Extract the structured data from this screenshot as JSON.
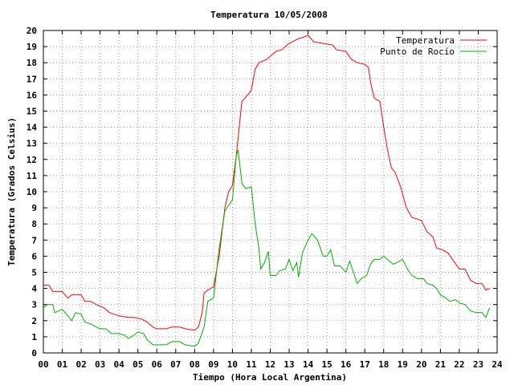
{
  "chart_data": {
    "type": "line",
    "title": "Temperatura 10/05/2008",
    "xlabel": "Tiempo (Hora Local Argentina)",
    "ylabel": "Temperatura (Grados Celsius)",
    "xlim": [
      0,
      24
    ],
    "ylim": [
      0,
      20
    ],
    "grid": true,
    "legend_position": "top-right",
    "x_ticks": [
      "00",
      "01",
      "02",
      "03",
      "04",
      "05",
      "06",
      "07",
      "08",
      "09",
      "10",
      "11",
      "12",
      "13",
      "14",
      "15",
      "16",
      "17",
      "18",
      "19",
      "20",
      "21",
      "22",
      "23",
      "24"
    ],
    "y_ticks": [
      "0",
      "1",
      "2",
      "3",
      "4",
      "5",
      "6",
      "7",
      "8",
      "9",
      "10",
      "11",
      "12",
      "13",
      "14",
      "15",
      "16",
      "17",
      "18",
      "19",
      "20"
    ],
    "series": [
      {
        "name": "Temperatura",
        "color": "#ff0000",
        "points": [
          [
            0.0,
            4.2
          ],
          [
            0.3,
            4.2
          ],
          [
            0.5,
            3.8
          ],
          [
            1.0,
            3.8
          ],
          [
            1.3,
            3.4
          ],
          [
            1.5,
            3.6
          ],
          [
            2.0,
            3.6
          ],
          [
            2.2,
            3.2
          ],
          [
            2.5,
            3.2
          ],
          [
            2.8,
            3.0
          ],
          [
            3.2,
            2.8
          ],
          [
            3.5,
            2.5
          ],
          [
            4.0,
            2.3
          ],
          [
            4.5,
            2.2
          ],
          [
            4.8,
            2.2
          ],
          [
            5.2,
            2.1
          ],
          [
            5.5,
            1.9
          ],
          [
            5.8,
            1.6
          ],
          [
            6.0,
            1.5
          ],
          [
            6.5,
            1.5
          ],
          [
            6.8,
            1.6
          ],
          [
            7.2,
            1.6
          ],
          [
            7.5,
            1.5
          ],
          [
            8.0,
            1.4
          ],
          [
            8.2,
            1.6
          ],
          [
            8.4,
            2.5
          ],
          [
            8.5,
            3.7
          ],
          [
            8.7,
            3.9
          ],
          [
            9.0,
            4.1
          ],
          [
            9.3,
            6.0
          ],
          [
            9.6,
            9.0
          ],
          [
            9.8,
            10.0
          ],
          [
            10.0,
            10.4
          ],
          [
            10.2,
            12.2
          ],
          [
            10.5,
            15.6
          ],
          [
            10.8,
            16.0
          ],
          [
            11.0,
            16.3
          ],
          [
            11.2,
            17.6
          ],
          [
            11.4,
            18.0
          ],
          [
            11.8,
            18.2
          ],
          [
            12.3,
            18.7
          ],
          [
            12.6,
            18.8
          ],
          [
            13.0,
            19.2
          ],
          [
            13.5,
            19.5
          ],
          [
            13.8,
            19.6
          ],
          [
            14.0,
            19.7
          ],
          [
            14.3,
            19.3
          ],
          [
            14.8,
            19.2
          ],
          [
            15.3,
            19.1
          ],
          [
            15.5,
            18.8
          ],
          [
            16.0,
            18.7
          ],
          [
            16.3,
            18.2
          ],
          [
            16.6,
            18.0
          ],
          [
            17.0,
            17.9
          ],
          [
            17.2,
            17.7
          ],
          [
            17.3,
            16.8
          ],
          [
            17.5,
            15.8
          ],
          [
            17.8,
            15.6
          ],
          [
            18.0,
            14.0
          ],
          [
            18.2,
            12.6
          ],
          [
            18.4,
            11.5
          ],
          [
            18.6,
            11.2
          ],
          [
            18.9,
            10.3
          ],
          [
            19.2,
            9.0
          ],
          [
            19.5,
            8.4
          ],
          [
            19.8,
            8.3
          ],
          [
            20.0,
            8.2
          ],
          [
            20.3,
            7.5
          ],
          [
            20.6,
            7.2
          ],
          [
            20.8,
            6.5
          ],
          [
            21.1,
            6.4
          ],
          [
            21.4,
            6.2
          ],
          [
            21.7,
            5.7
          ],
          [
            22.0,
            5.2
          ],
          [
            22.3,
            5.2
          ],
          [
            22.6,
            4.5
          ],
          [
            22.9,
            4.3
          ],
          [
            23.2,
            4.3
          ],
          [
            23.4,
            3.9
          ],
          [
            23.6,
            4.0
          ]
        ]
      },
      {
        "name": "Punto de Rocío",
        "color": "#00b000",
        "points": [
          [
            0.0,
            2.8
          ],
          [
            0.2,
            3.0
          ],
          [
            0.5,
            3.0
          ],
          [
            0.6,
            2.5
          ],
          [
            1.0,
            2.7
          ],
          [
            1.3,
            2.3
          ],
          [
            1.5,
            2.0
          ],
          [
            1.7,
            2.5
          ],
          [
            2.0,
            2.4
          ],
          [
            2.2,
            1.9
          ],
          [
            2.5,
            1.8
          ],
          [
            2.8,
            1.6
          ],
          [
            3.0,
            1.5
          ],
          [
            3.3,
            1.5
          ],
          [
            3.6,
            1.2
          ],
          [
            4.0,
            1.2
          ],
          [
            4.3,
            1.1
          ],
          [
            4.5,
            0.9
          ],
          [
            4.8,
            1.1
          ],
          [
            5.0,
            1.3
          ],
          [
            5.3,
            1.2
          ],
          [
            5.5,
            0.8
          ],
          [
            5.8,
            0.5
          ],
          [
            6.5,
            0.5
          ],
          [
            6.8,
            0.7
          ],
          [
            7.2,
            0.7
          ],
          [
            7.5,
            0.5
          ],
          [
            8.0,
            0.4
          ],
          [
            8.2,
            0.6
          ],
          [
            8.5,
            1.6
          ],
          [
            8.7,
            3.2
          ],
          [
            9.0,
            3.4
          ],
          [
            9.3,
            6.5
          ],
          [
            9.6,
            8.8
          ],
          [
            10.0,
            9.5
          ],
          [
            10.2,
            12.2
          ],
          [
            10.3,
            12.6
          ],
          [
            10.5,
            10.5
          ],
          [
            10.7,
            10.2
          ],
          [
            11.0,
            10.3
          ],
          [
            11.2,
            8.0
          ],
          [
            11.4,
            6.5
          ],
          [
            11.5,
            5.2
          ],
          [
            11.7,
            5.6
          ],
          [
            11.9,
            6.3
          ],
          [
            12.0,
            4.8
          ],
          [
            12.3,
            4.8
          ],
          [
            12.5,
            5.1
          ],
          [
            12.8,
            5.2
          ],
          [
            13.0,
            5.8
          ],
          [
            13.2,
            5.1
          ],
          [
            13.4,
            5.6
          ],
          [
            13.5,
            4.7
          ],
          [
            13.7,
            6.2
          ],
          [
            14.0,
            7.0
          ],
          [
            14.2,
            7.4
          ],
          [
            14.5,
            7.0
          ],
          [
            14.8,
            6.0
          ],
          [
            15.0,
            6.0
          ],
          [
            15.2,
            6.4
          ],
          [
            15.4,
            5.4
          ],
          [
            15.7,
            5.4
          ],
          [
            16.0,
            5.0
          ],
          [
            16.2,
            5.7
          ],
          [
            16.4,
            5.0
          ],
          [
            16.6,
            4.3
          ],
          [
            16.8,
            4.6
          ],
          [
            17.1,
            4.8
          ],
          [
            17.3,
            5.5
          ],
          [
            17.5,
            5.8
          ],
          [
            17.8,
            5.8
          ],
          [
            18.0,
            6.0
          ],
          [
            18.2,
            5.8
          ],
          [
            18.5,
            5.5
          ],
          [
            18.7,
            5.6
          ],
          [
            19.0,
            5.8
          ],
          [
            19.3,
            5.1
          ],
          [
            19.5,
            4.8
          ],
          [
            19.8,
            4.6
          ],
          [
            20.1,
            4.6
          ],
          [
            20.3,
            4.3
          ],
          [
            20.6,
            4.2
          ],
          [
            20.8,
            4.0
          ],
          [
            21.0,
            3.6
          ],
          [
            21.3,
            3.4
          ],
          [
            21.5,
            3.2
          ],
          [
            21.8,
            3.3
          ],
          [
            22.0,
            3.1
          ],
          [
            22.3,
            3.0
          ],
          [
            22.6,
            2.6
          ],
          [
            22.9,
            2.5
          ],
          [
            23.2,
            2.5
          ],
          [
            23.4,
            2.2
          ],
          [
            23.6,
            2.8
          ]
        ]
      }
    ]
  }
}
